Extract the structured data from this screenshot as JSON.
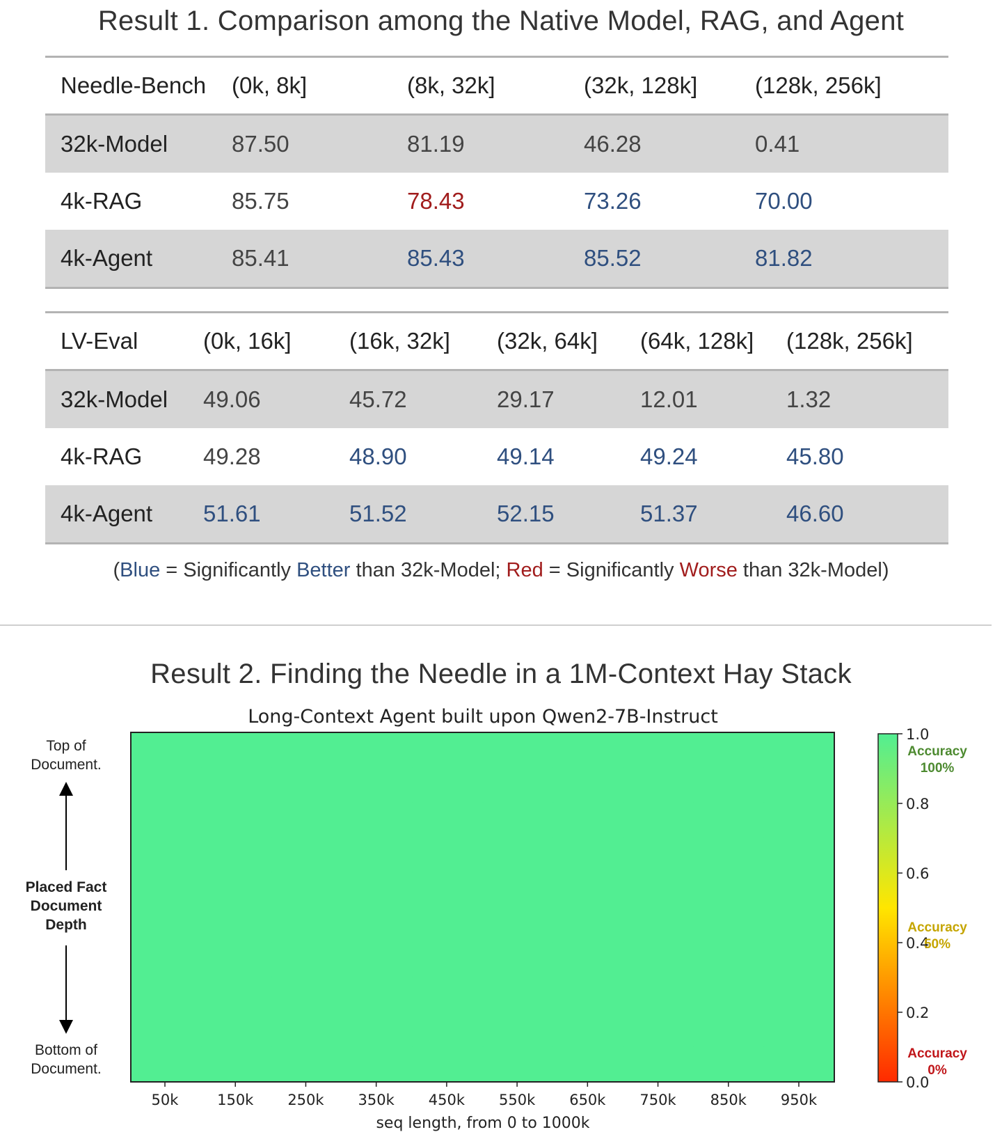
{
  "result1": {
    "title": "Result 1. Comparison among the Native Model, RAG, and Agent",
    "needle_bench": {
      "header": [
        "Needle-Bench",
        "(0k, 8k]",
        "(8k, 32k]",
        "(32k, 128k]",
        "(128k, 256k]"
      ],
      "rows": [
        {
          "name": "32k-Model",
          "cells": [
            {
              "v": "87.50",
              "s": ""
            },
            {
              "v": "81.19",
              "s": ""
            },
            {
              "v": "46.28",
              "s": ""
            },
            {
              "v": "0.41",
              "s": ""
            }
          ]
        },
        {
          "name": "4k-RAG",
          "cells": [
            {
              "v": "85.75",
              "s": ""
            },
            {
              "v": "78.43",
              "s": "worse"
            },
            {
              "v": "73.26",
              "s": "better"
            },
            {
              "v": "70.00",
              "s": "better"
            }
          ]
        },
        {
          "name": "4k-Agent",
          "cells": [
            {
              "v": "85.41",
              "s": ""
            },
            {
              "v": "85.43",
              "s": "better"
            },
            {
              "v": "85.52",
              "s": "better"
            },
            {
              "v": "81.82",
              "s": "better"
            }
          ]
        }
      ]
    },
    "lv_eval": {
      "header": [
        "LV-Eval",
        "(0k, 16k]",
        "(16k, 32k]",
        "(32k, 64k]",
        "(64k, 128k]",
        "(128k, 256k]"
      ],
      "rows": [
        {
          "name": "32k-Model",
          "cells": [
            {
              "v": "49.06",
              "s": ""
            },
            {
              "v": "45.72",
              "s": ""
            },
            {
              "v": "29.17",
              "s": ""
            },
            {
              "v": "12.01",
              "s": ""
            },
            {
              "v": "1.32",
              "s": ""
            }
          ]
        },
        {
          "name": "4k-RAG",
          "cells": [
            {
              "v": "49.28",
              "s": ""
            },
            {
              "v": "48.90",
              "s": "better"
            },
            {
              "v": "49.14",
              "s": "better"
            },
            {
              "v": "49.24",
              "s": "better"
            },
            {
              "v": "45.80",
              "s": "better"
            }
          ]
        },
        {
          "name": "4k-Agent",
          "cells": [
            {
              "v": "51.61",
              "s": "better"
            },
            {
              "v": "51.52",
              "s": "better"
            },
            {
              "v": "52.15",
              "s": "better"
            },
            {
              "v": "51.37",
              "s": "better"
            },
            {
              "v": "46.60",
              "s": "better"
            }
          ]
        }
      ]
    },
    "note": {
      "open": "(",
      "blue": "Blue",
      "eq1": " = Significantly ",
      "better": "Better",
      "than1": " than 32k-Model; ",
      "red": "Red",
      "eq2": " = Significantly ",
      "worse": "Worse",
      "than2": " than 32k-Model)"
    }
  },
  "result2": {
    "title": "Result 2. Finding the Needle in a 1M-Context Hay Stack"
  },
  "chart_data": {
    "type": "heatmap",
    "title": "Long-Context Agent built upon Qwen2-7B-Instruct",
    "xlabel": "seq length, from 0 to 1000k",
    "x_categories": [
      "50k",
      "150k",
      "250k",
      "350k",
      "450k",
      "550k",
      "650k",
      "750k",
      "850k",
      "950k"
    ],
    "y_top_label": "Top of Document.",
    "y_middle_label": [
      "Placed Fact",
      "Document",
      "Depth"
    ],
    "y_bottom_label": "Bottom of Document.",
    "values": [
      [
        1,
        1,
        1,
        1,
        1,
        1,
        1,
        1,
        1,
        1
      ],
      [
        1,
        1,
        1,
        1,
        1,
        1,
        1,
        1,
        1,
        1
      ],
      [
        1,
        1,
        1,
        1,
        1,
        1,
        1,
        1,
        1,
        1
      ],
      [
        1,
        1,
        1,
        1,
        1,
        1,
        1,
        1,
        1,
        1
      ],
      [
        1,
        1,
        1,
        1,
        1,
        1,
        1,
        1,
        1,
        1
      ],
      [
        1,
        1,
        1,
        1,
        1,
        1,
        1,
        1,
        1,
        1
      ],
      [
        1,
        1,
        1,
        1,
        1,
        1,
        1,
        1,
        1,
        1
      ],
      [
        1,
        1,
        1,
        1,
        1,
        1,
        1,
        1,
        1,
        1
      ],
      [
        1,
        1,
        1,
        1,
        1,
        1,
        1,
        1,
        1,
        1
      ],
      [
        1,
        1,
        1,
        1,
        1,
        1,
        1,
        1,
        1,
        1
      ]
    ],
    "colorbar": {
      "range": [
        0.0,
        1.0
      ],
      "ticks": [
        "0.0",
        "0.2",
        "0.4",
        "0.6",
        "0.8",
        "1.0"
      ],
      "tick_values": [
        0.0,
        0.2,
        0.4,
        0.6,
        0.8,
        1.0
      ],
      "colors": [
        "#ff2a00",
        "#ffe600",
        "#52ee92"
      ],
      "annotations": [
        {
          "lines": [
            "Accuracy",
            "100%"
          ],
          "value": 1.0,
          "color": "#4d8a30"
        },
        {
          "lines": [
            "Accuracy",
            "50%"
          ],
          "value": 0.5,
          "color": "#c5a500"
        },
        {
          "lines": [
            "Accuracy",
            "0%"
          ],
          "value": 0.0,
          "color": "#c0161a"
        }
      ]
    }
  }
}
